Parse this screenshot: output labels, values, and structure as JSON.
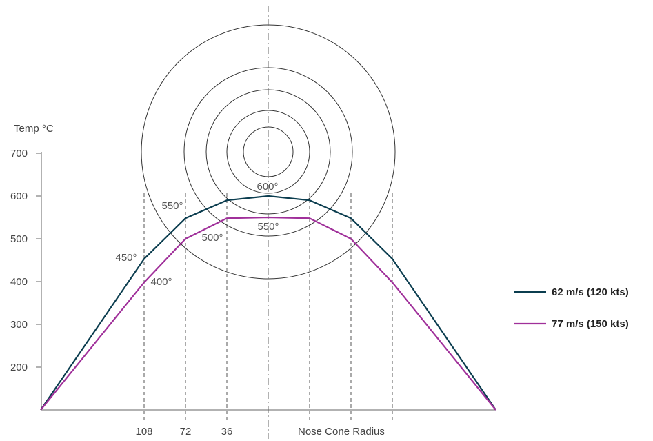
{
  "chart_data": {
    "type": "line",
    "ylabel": "Temp °C",
    "xlabel": "Nose Cone Radius",
    "ylim": [
      100,
      700
    ],
    "yticks": [
      200,
      300,
      400,
      500,
      600,
      700
    ],
    "xticks": [
      "108",
      "72",
      "36"
    ],
    "x": [
      -198,
      -108,
      -72,
      -36,
      0,
      36,
      72,
      108,
      198
    ],
    "series": [
      {
        "name": "62 m/s (120 kts)",
        "color": "#0b3d4f",
        "values": [
          100,
          453,
          548,
          590,
          600,
          590,
          548,
          453,
          100
        ]
      },
      {
        "name": "77 m/s (150 kts)",
        "color": "#a0309a",
        "values": [
          100,
          398,
          500,
          548,
          550,
          548,
          500,
          398,
          100
        ]
      }
    ],
    "annotations": [
      "600°",
      "550°",
      "450°",
      "550°",
      "500°",
      "400°"
    ],
    "legend_position": "right",
    "grid": false
  }
}
